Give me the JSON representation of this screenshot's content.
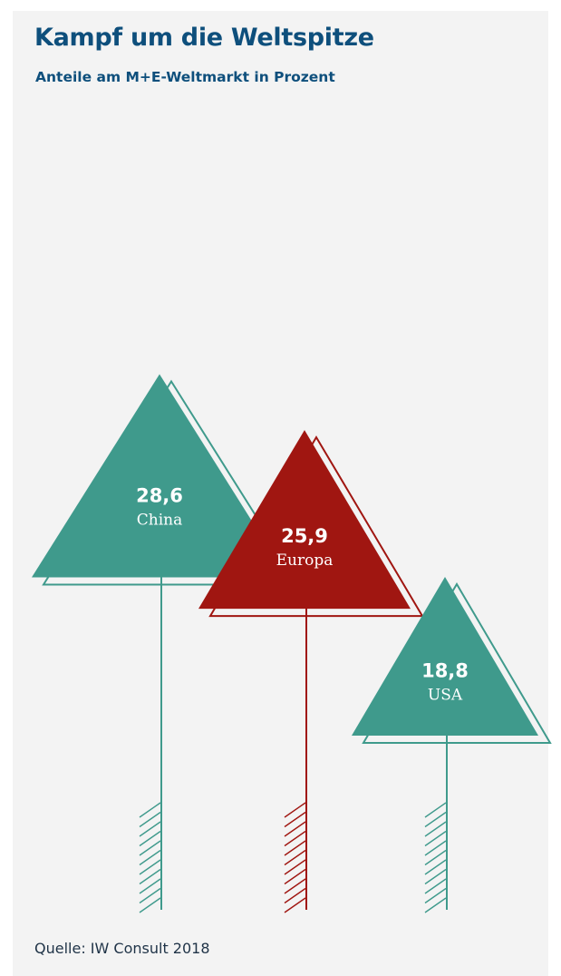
{
  "title": "Kampf um die Weltspitze",
  "subtitle": "Anteile am M+E-Weltmarkt in Prozent",
  "source": "Quelle: IW Consult 2018",
  "colors": {
    "teal": "#3f9a8c",
    "red": "#a01611",
    "background": "#f3f3f3",
    "title": "#0e4f7c"
  },
  "chart_data": {
    "type": "bar",
    "categories": [
      "China",
      "Europa",
      "USA"
    ],
    "values": [
      28.6,
      25.9,
      18.8
    ],
    "value_labels": [
      "28,6",
      "25,9",
      "18,8"
    ],
    "series_colors": [
      "#3f9a8c",
      "#a01611",
      "#3f9a8c"
    ],
    "unit": "Prozent"
  }
}
